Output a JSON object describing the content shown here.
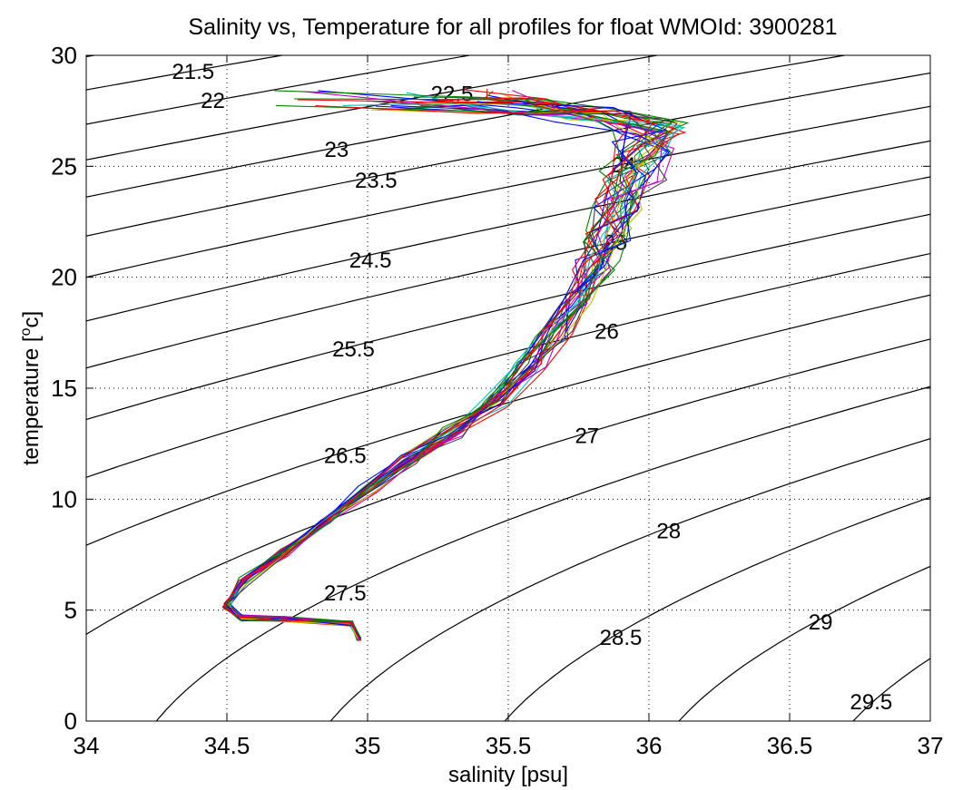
{
  "chart_data": {
    "type": "line",
    "title": "Salinity vs, Temperature for all profiles for float WMOId: 3900281",
    "xlabel": "salinity [psu]",
    "ylabel_main": "temperature [",
    "ylabel_sup": "o",
    "ylabel_end": "c]",
    "xlim": [
      34,
      37
    ],
    "ylim": [
      0,
      30
    ],
    "xticks": [
      34,
      34.5,
      35,
      35.5,
      36,
      36.5,
      37
    ],
    "xtick_labels": [
      "34",
      "34.5",
      "35",
      "35.5",
      "36",
      "36.5",
      "37"
    ],
    "yticks": [
      0,
      5,
      10,
      15,
      20,
      25,
      30
    ],
    "ytick_labels": [
      "0",
      "5",
      "10",
      "15",
      "20",
      "25",
      "30"
    ],
    "grid": true,
    "density_labels": [
      {
        "text": "21.5",
        "s": 34.38,
        "t": 29.3
      },
      {
        "text": "22",
        "s": 34.45,
        "t": 28.0
      },
      {
        "text": "22.5",
        "s": 35.3,
        "t": 28.3
      },
      {
        "text": "23",
        "s": 34.89,
        "t": 25.8
      },
      {
        "text": "23.5",
        "s": 35.03,
        "t": 24.4
      },
      {
        "text": "24",
        "s": 35.91,
        "t": 25.1
      },
      {
        "text": "24.5",
        "s": 35.01,
        "t": 20.8
      },
      {
        "text": "25",
        "s": 35.88,
        "t": 21.6
      },
      {
        "text": "25.5",
        "s": 34.95,
        "t": 16.8
      },
      {
        "text": "26",
        "s": 35.85,
        "t": 17.6
      },
      {
        "text": "26.5",
        "s": 34.92,
        "t": 12.0
      },
      {
        "text": "27",
        "s": 35.78,
        "t": 12.9
      },
      {
        "text": "27.5",
        "s": 34.92,
        "t": 5.8
      },
      {
        "text": "28",
        "s": 36.07,
        "t": 8.6
      },
      {
        "text": "28.5",
        "s": 35.9,
        "t": 3.8
      },
      {
        "text": "29",
        "s": 36.61,
        "t": 4.5
      },
      {
        "text": "29.5",
        "s": 36.79,
        "t": 0.9
      }
    ],
    "profile_colors": [
      "#0000ff",
      "#008000",
      "#ff0000",
      "#00bfbf",
      "#bf00bf",
      "#bfbf00",
      "#404040",
      "#0000ff",
      "#008000",
      "#ff0000"
    ]
  }
}
